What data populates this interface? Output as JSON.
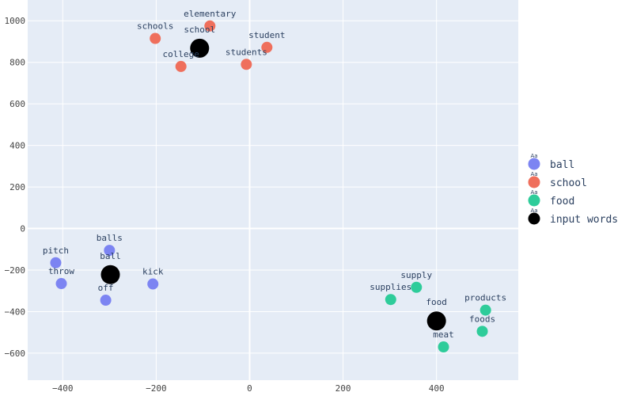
{
  "chart_data": {
    "type": "scatter",
    "title": "",
    "xlabel": "",
    "ylabel": "",
    "xlim": [
      -475,
      575
    ],
    "ylim": [
      -730,
      1100
    ],
    "x_ticks": [
      -400,
      -200,
      0,
      200,
      400
    ],
    "y_ticks": [
      -600,
      -400,
      -200,
      0,
      200,
      400,
      600,
      800,
      1000
    ],
    "grid": true,
    "legend_position": "right",
    "series": [
      {
        "name": "ball",
        "color": "#7c84f2",
        "points": [
          {
            "label": "balls",
            "x": -300,
            "y": -105
          },
          {
            "label": "pitch",
            "x": -415,
            "y": -165
          },
          {
            "label": "throw",
            "x": -403,
            "y": -265
          },
          {
            "label": "kick",
            "x": -207,
            "y": -267
          },
          {
            "label": "off",
            "x": -308,
            "y": -345
          }
        ]
      },
      {
        "name": "school",
        "color": "#ef6f5c",
        "points": [
          {
            "label": "elementary",
            "x": -85,
            "y": 975
          },
          {
            "label": "schools",
            "x": -202,
            "y": 915
          },
          {
            "label": "student",
            "x": 37,
            "y": 872
          },
          {
            "label": "college",
            "x": -147,
            "y": 780
          },
          {
            "label": "students",
            "x": -7,
            "y": 790
          }
        ]
      },
      {
        "name": "food",
        "color": "#2ecc9a",
        "points": [
          {
            "label": "supply",
            "x": 357,
            "y": -283
          },
          {
            "label": "supplies",
            "x": 302,
            "y": -342
          },
          {
            "label": "products",
            "x": 505,
            "y": -393
          },
          {
            "label": "foods",
            "x": 498,
            "y": -495
          },
          {
            "label": "meat",
            "x": 415,
            "y": -570
          }
        ]
      },
      {
        "name": "input words",
        "color": "#000000",
        "points": [
          {
            "label": "school",
            "x": -107,
            "y": 868
          },
          {
            "label": "ball",
            "x": -298,
            "y": -222
          },
          {
            "label": "food",
            "x": 400,
            "y": -445
          }
        ]
      }
    ]
  }
}
